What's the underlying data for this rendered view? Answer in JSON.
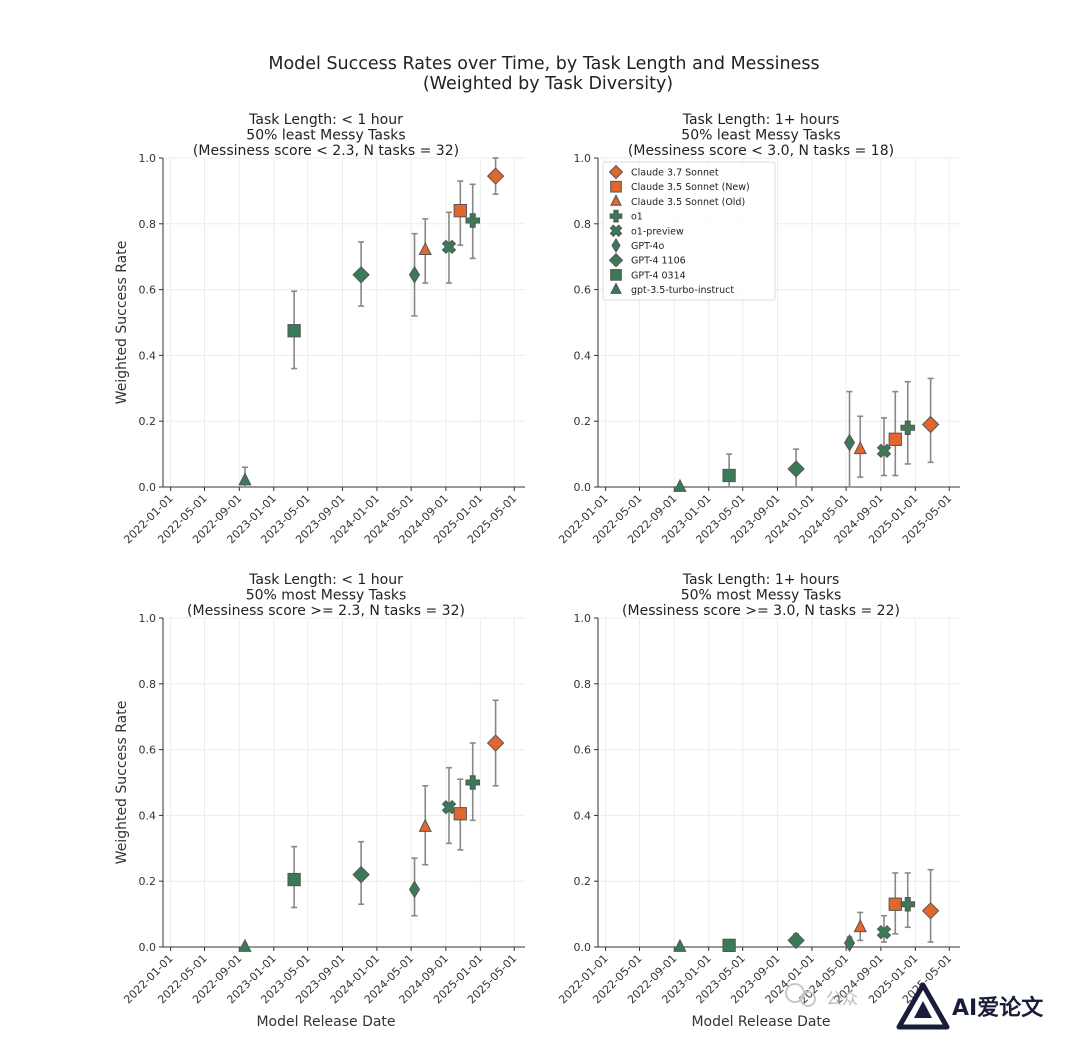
{
  "figure": {
    "title_line1": "Model Success Rates over Time, by Task Length and Messiness",
    "title_line2": "(Weighted by Task Diversity)"
  },
  "colors": {
    "claude": "#e2672d",
    "openai": "#3b7a57",
    "edge": "#555555",
    "errorbar": "#888888"
  },
  "legend": [
    {
      "label": "Claude 3.7 Sonnet",
      "marker": "diamond",
      "color": "claude"
    },
    {
      "label": "Claude 3.5 Sonnet (New)",
      "marker": "square",
      "color": "claude"
    },
    {
      "label": "Claude 3.5 Sonnet (Old)",
      "marker": "triangle",
      "color": "claude"
    },
    {
      "label": "o1",
      "marker": "plus",
      "color": "openai"
    },
    {
      "label": "o1-preview",
      "marker": "x",
      "color": "openai"
    },
    {
      "label": "GPT-4o",
      "marker": "thin_diamond",
      "color": "openai"
    },
    {
      "label": "GPT-4 1106",
      "marker": "diamond",
      "color": "openai"
    },
    {
      "label": "GPT-4 0314",
      "marker": "square",
      "color": "openai"
    },
    {
      "label": "gpt-3.5-turbo-instruct",
      "marker": "triangle",
      "color": "openai"
    }
  ],
  "watermark": {
    "left_text": "公众",
    "brand": "AI爱论文"
  },
  "chart_data": [
    {
      "type": "scatter",
      "title": [
        "Task Length: < 1 hour",
        "50% least Messy Tasks",
        "(Messiness score < 2.3, N tasks = 32)"
      ],
      "xlabel": "",
      "ylabel": "Weighted Success Rate",
      "ylim": [
        0,
        1
      ],
      "yticks": [
        "0.0",
        "0.2",
        "0.4",
        "0.6",
        "0.8",
        "1.0"
      ],
      "xticks": [
        "2022-01-01",
        "2022-05-01",
        "2022-09-01",
        "2023-01-01",
        "2023-05-01",
        "2023-09-01",
        "2024-01-01",
        "2024-05-01",
        "2024-09-01",
        "2025-01-01",
        "2025-05-01"
      ],
      "legend": false,
      "points": [
        {
          "model": "gpt-3.5-turbo-instruct",
          "date": "2022-09-21",
          "y": 0.02,
          "lo": 0.0,
          "hi": 0.06
        },
        {
          "model": "GPT-4 0314",
          "date": "2023-03-14",
          "y": 0.475,
          "lo": 0.36,
          "hi": 0.595
        },
        {
          "model": "GPT-4 1106",
          "date": "2023-11-06",
          "y": 0.645,
          "lo": 0.55,
          "hi": 0.745
        },
        {
          "model": "GPT-4o",
          "date": "2024-05-13",
          "y": 0.645,
          "lo": 0.52,
          "hi": 0.77
        },
        {
          "model": "Claude 3.5 Sonnet (Old)",
          "date": "2024-06-20",
          "y": 0.72,
          "lo": 0.62,
          "hi": 0.815
        },
        {
          "model": "o1-preview",
          "date": "2024-09-12",
          "y": 0.73,
          "lo": 0.62,
          "hi": 0.835
        },
        {
          "model": "Claude 3.5 Sonnet (New)",
          "date": "2024-10-22",
          "y": 0.84,
          "lo": 0.735,
          "hi": 0.93
        },
        {
          "model": "o1",
          "date": "2024-12-05",
          "y": 0.81,
          "lo": 0.695,
          "hi": 0.92
        },
        {
          "model": "Claude 3.7 Sonnet",
          "date": "2025-02-24",
          "y": 0.945,
          "lo": 0.89,
          "hi": 1.0
        }
      ]
    },
    {
      "type": "scatter",
      "title": [
        "Task Length: 1+ hours",
        "50% least Messy Tasks",
        "(Messiness score < 3.0, N tasks = 18)"
      ],
      "xlabel": "",
      "ylabel": "",
      "ylim": [
        0,
        1
      ],
      "yticks": [
        "0.0",
        "0.2",
        "0.4",
        "0.6",
        "0.8",
        "1.0"
      ],
      "xticks": [
        "2022-01-01",
        "2022-05-01",
        "2022-09-01",
        "2023-01-01",
        "2023-05-01",
        "2023-09-01",
        "2024-01-01",
        "2024-05-01",
        "2024-09-01",
        "2025-01-01",
        "2025-05-01"
      ],
      "legend": true,
      "points": [
        {
          "model": "gpt-3.5-turbo-instruct",
          "date": "2022-09-21",
          "y": 0.0,
          "lo": 0.0,
          "hi": 0.0
        },
        {
          "model": "GPT-4 0314",
          "date": "2023-03-14",
          "y": 0.035,
          "lo": 0.0,
          "hi": 0.1
        },
        {
          "model": "GPT-4 1106",
          "date": "2023-11-06",
          "y": 0.055,
          "lo": 0.0,
          "hi": 0.115
        },
        {
          "model": "GPT-4o",
          "date": "2024-05-13",
          "y": 0.135,
          "lo": 0.0,
          "hi": 0.29
        },
        {
          "model": "Claude 3.5 Sonnet (Old)",
          "date": "2024-06-20",
          "y": 0.115,
          "lo": 0.03,
          "hi": 0.215
        },
        {
          "model": "o1-preview",
          "date": "2024-09-12",
          "y": 0.11,
          "lo": 0.035,
          "hi": 0.21
        },
        {
          "model": "Claude 3.5 Sonnet (New)",
          "date": "2024-10-22",
          "y": 0.145,
          "lo": 0.035,
          "hi": 0.29
        },
        {
          "model": "o1",
          "date": "2024-12-05",
          "y": 0.18,
          "lo": 0.07,
          "hi": 0.32
        },
        {
          "model": "Claude 3.7 Sonnet",
          "date": "2025-02-24",
          "y": 0.19,
          "lo": 0.075,
          "hi": 0.33
        }
      ]
    },
    {
      "type": "scatter",
      "title": [
        "Task Length: < 1 hour",
        "50% most Messy Tasks",
        "(Messiness score >= 2.3, N tasks = 32)"
      ],
      "xlabel": "Model Release Date",
      "ylabel": "Weighted Success Rate",
      "ylim": [
        0,
        1
      ],
      "yticks": [
        "0.0",
        "0.2",
        "0.4",
        "0.6",
        "0.8",
        "1.0"
      ],
      "xticks": [
        "2022-01-01",
        "2022-05-01",
        "2022-09-01",
        "2023-01-01",
        "2023-05-01",
        "2023-09-01",
        "2024-01-01",
        "2024-05-01",
        "2024-09-01",
        "2025-01-01",
        "2025-05-01"
      ],
      "legend": false,
      "points": [
        {
          "model": "gpt-3.5-turbo-instruct",
          "date": "2022-09-21",
          "y": 0.0,
          "lo": 0.0,
          "hi": 0.0
        },
        {
          "model": "GPT-4 0314",
          "date": "2023-03-14",
          "y": 0.205,
          "lo": 0.12,
          "hi": 0.305
        },
        {
          "model": "GPT-4 1106",
          "date": "2023-11-06",
          "y": 0.22,
          "lo": 0.13,
          "hi": 0.32
        },
        {
          "model": "GPT-4o",
          "date": "2024-05-13",
          "y": 0.175,
          "lo": 0.095,
          "hi": 0.27
        },
        {
          "model": "Claude 3.5 Sonnet (Old)",
          "date": "2024-06-20",
          "y": 0.365,
          "lo": 0.25,
          "hi": 0.49
        },
        {
          "model": "o1-preview",
          "date": "2024-09-12",
          "y": 0.425,
          "lo": 0.315,
          "hi": 0.545
        },
        {
          "model": "Claude 3.5 Sonnet (New)",
          "date": "2024-10-22",
          "y": 0.405,
          "lo": 0.295,
          "hi": 0.51
        },
        {
          "model": "o1",
          "date": "2024-12-05",
          "y": 0.5,
          "lo": 0.385,
          "hi": 0.62
        },
        {
          "model": "Claude 3.7 Sonnet",
          "date": "2025-02-24",
          "y": 0.62,
          "lo": 0.49,
          "hi": 0.75
        }
      ]
    },
    {
      "type": "scatter",
      "title": [
        "Task Length: 1+ hours",
        "50% most Messy Tasks",
        "(Messiness score >= 3.0, N tasks = 22)"
      ],
      "xlabel": "Model Release Date",
      "ylabel": "",
      "ylim": [
        0,
        1
      ],
      "yticks": [
        "0.0",
        "0.2",
        "0.4",
        "0.6",
        "0.8",
        "1.0"
      ],
      "xticks": [
        "2022-01-01",
        "2022-05-01",
        "2022-09-01",
        "2023-01-01",
        "2023-05-01",
        "2023-09-01",
        "2024-01-01",
        "2024-05-01",
        "2024-09-01",
        "2025-01-01",
        "2025-05-01"
      ],
      "legend": false,
      "points": [
        {
          "model": "gpt-3.5-turbo-instruct",
          "date": "2022-09-21",
          "y": 0.0,
          "lo": 0.0,
          "hi": 0.0
        },
        {
          "model": "GPT-4 0314",
          "date": "2023-03-14",
          "y": 0.005,
          "lo": 0.0,
          "hi": 0.005
        },
        {
          "model": "GPT-4 1106",
          "date": "2023-11-06",
          "y": 0.02,
          "lo": 0.0,
          "hi": 0.04
        },
        {
          "model": "GPT-4o",
          "date": "2024-05-13",
          "y": 0.012,
          "lo": 0.0,
          "hi": 0.03
        },
        {
          "model": "Claude 3.5 Sonnet (Old)",
          "date": "2024-06-20",
          "y": 0.06,
          "lo": 0.02,
          "hi": 0.105
        },
        {
          "model": "o1-preview",
          "date": "2024-09-12",
          "y": 0.045,
          "lo": 0.015,
          "hi": 0.095
        },
        {
          "model": "Claude 3.5 Sonnet (New)",
          "date": "2024-10-22",
          "y": 0.13,
          "lo": 0.04,
          "hi": 0.225
        },
        {
          "model": "o1",
          "date": "2024-12-05",
          "y": 0.13,
          "lo": 0.06,
          "hi": 0.225
        },
        {
          "model": "Claude 3.7 Sonnet",
          "date": "2025-02-24",
          "y": 0.11,
          "lo": 0.015,
          "hi": 0.235
        }
      ]
    }
  ]
}
